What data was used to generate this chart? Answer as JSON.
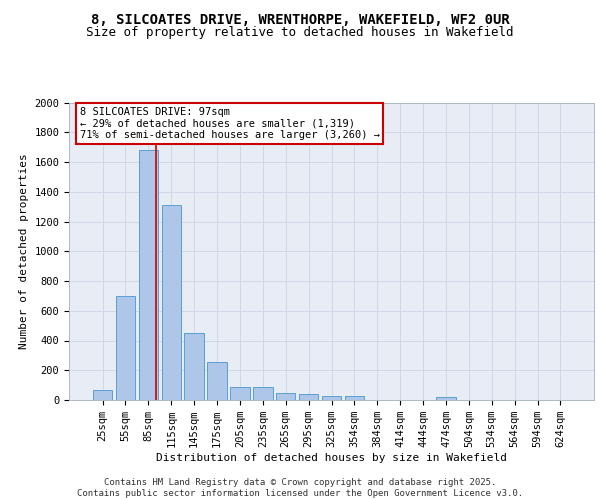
{
  "title_line1": "8, SILCOATES DRIVE, WRENTHORPE, WAKEFIELD, WF2 0UR",
  "title_line2": "Size of property relative to detached houses in Wakefield",
  "xlabel": "Distribution of detached houses by size in Wakefield",
  "ylabel": "Number of detached properties",
  "categories": [
    "25sqm",
    "55sqm",
    "85sqm",
    "115sqm",
    "145sqm",
    "175sqm",
    "205sqm",
    "235sqm",
    "265sqm",
    "295sqm",
    "325sqm",
    "354sqm",
    "384sqm",
    "414sqm",
    "444sqm",
    "474sqm",
    "504sqm",
    "534sqm",
    "564sqm",
    "594sqm",
    "624sqm"
  ],
  "values": [
    65,
    700,
    1680,
    1310,
    450,
    255,
    90,
    90,
    50,
    40,
    30,
    25,
    0,
    0,
    0,
    20,
    0,
    0,
    0,
    0,
    0
  ],
  "bar_color": "#aec6e8",
  "bar_edge_color": "#5a9fd4",
  "vline_x": 2.35,
  "annotation_text": "8 SILCOATES DRIVE: 97sqm\n← 29% of detached houses are smaller (1,319)\n71% of semi-detached houses are larger (3,260) →",
  "annotation_box_color": "#ffffff",
  "annotation_box_edge": "#cc0000",
  "vline_color": "#cc0000",
  "grid_color": "#d0d8e8",
  "background_color": "#e8edf5",
  "footer_text": "Contains HM Land Registry data © Crown copyright and database right 2025.\nContains public sector information licensed under the Open Government Licence v3.0.",
  "ylim": [
    0,
    2000
  ],
  "yticks": [
    0,
    200,
    400,
    600,
    800,
    1000,
    1200,
    1400,
    1600,
    1800,
    2000
  ],
  "title_fontsize": 10,
  "subtitle_fontsize": 9,
  "axis_label_fontsize": 8,
  "tick_fontsize": 7.5,
  "annotation_fontsize": 7.5,
  "footer_fontsize": 6.5
}
